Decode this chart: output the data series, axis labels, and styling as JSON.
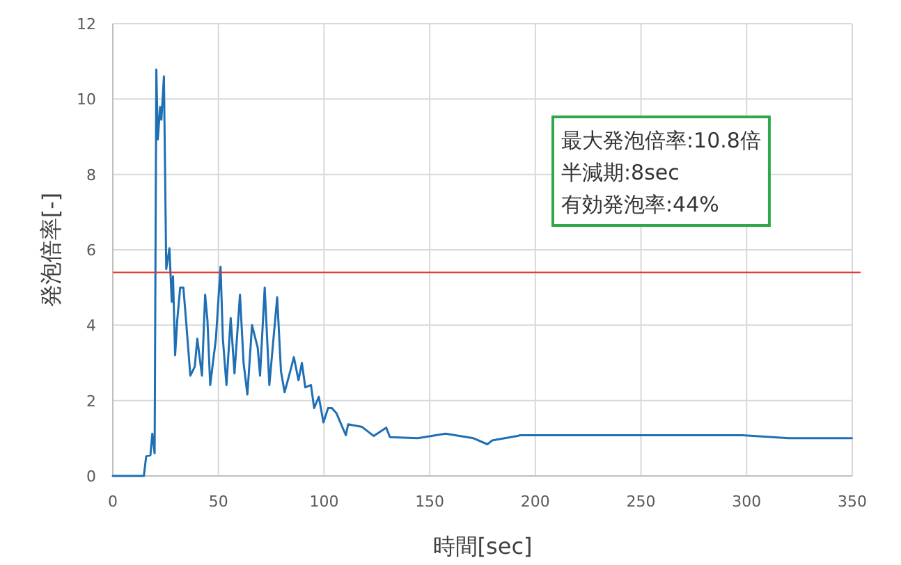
{
  "chart_data": {
    "type": "line",
    "xlabel": "時間[sec]",
    "ylabel": "発泡倍率[-]",
    "x": [
      0,
      14.7,
      15.8,
      17.8,
      18.7,
      19.8,
      20.6,
      21.3,
      22.4,
      23,
      24.2,
      25.3,
      26.8,
      27.9,
      28.5,
      29.5,
      30.5,
      31.9,
      33.4,
      34.5,
      36.7,
      38.8,
      40,
      42.2,
      43.7,
      44.8,
      46.1,
      48.8,
      51,
      52.1,
      53.8,
      55.8,
      57.6,
      60.2,
      61.9,
      63.7,
      65.9,
      68.6,
      69.7,
      71.9,
      74.1,
      77.8,
      79.6,
      81.3,
      84,
      85.7,
      87.9,
      89.5,
      91.1,
      93.8,
      95.3,
      97.5,
      99.7,
      101.9,
      103.7,
      105.9,
      110.3,
      111.4,
      118,
      123.5,
      129.4,
      131.2,
      144.4,
      157.5,
      170.7,
      177.3,
      179.5,
      191.6,
      192.7,
      298,
      320,
      349.8
    ],
    "series": [
      {
        "color": "#1f6fb5",
        "values": [
          0,
          0,
          0.52,
          0.55,
          1.12,
          0.6,
          10.78,
          8.93,
          9.79,
          9.45,
          10.6,
          5.49,
          6.04,
          4.62,
          5.3,
          3.2,
          4.13,
          5.0,
          5.0,
          4.25,
          2.66,
          2.9,
          3.64,
          2.66,
          4.81,
          4.13,
          2.41,
          3.64,
          5.55,
          3.64,
          2.41,
          4.19,
          2.72,
          4.81,
          3.0,
          2.16,
          4.0,
          3.4,
          2.66,
          5.0,
          2.41,
          4.74,
          2.78,
          2.22,
          2.78,
          3.15,
          2.54,
          3.0,
          2.35,
          2.41,
          1.8,
          2.1,
          1.42,
          1.8,
          1.8,
          1.66,
          1.08,
          1.37,
          1.3,
          1.06,
          1.28,
          1.03,
          1.0,
          1.12,
          1.0,
          0.84,
          0.94,
          1.06,
          1.08,
          1.08,
          1.0,
          1.0
        ]
      }
    ],
    "xlim": [
      0,
      350
    ],
    "xticks": [
      0,
      50,
      100,
      150,
      200,
      250,
      300,
      350
    ],
    "ylim": [
      0,
      12
    ],
    "yticks": [
      0,
      2,
      4,
      6,
      8,
      10,
      12
    ],
    "grid": true,
    "marker": "none",
    "ref_lines": [
      {
        "axis": "y",
        "value": 5.4,
        "color": "#e0302a"
      }
    ],
    "annotations": [
      "最大発泡倍率:10.8倍",
      "半減期:8sec",
      "有効発泡率:44%"
    ]
  }
}
